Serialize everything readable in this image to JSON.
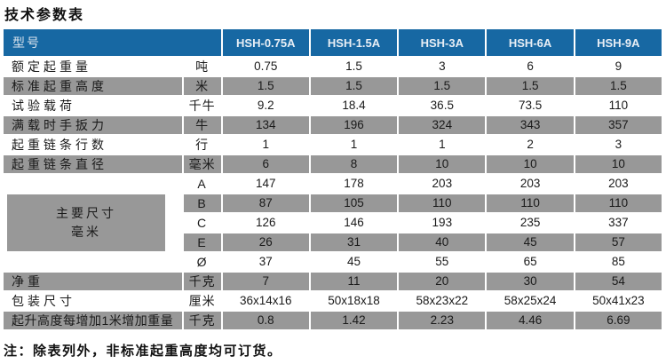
{
  "page": {
    "title": "技术参数表",
    "note": "注：除表列外，非标准起重高度均可订货。"
  },
  "colors": {
    "header_bg": "#1768a3",
    "header_text": "#e8eef5",
    "row_alt_bg": "#989898",
    "body_text": "#1a1a1a",
    "page_bg": "#ffffff"
  },
  "table": {
    "header": {
      "model_label": "型号",
      "models": [
        "HSH-0.75A",
        "HSH-1.5A",
        "HSH-3A",
        "HSH-6A",
        "HSH-9A"
      ]
    },
    "spec_rows": [
      {
        "label": "额定起重量",
        "unit": "吨",
        "values": [
          "0.75",
          "1.5",
          "3",
          "6",
          "9"
        ]
      },
      {
        "label": "标准起重高度",
        "unit": "米",
        "values": [
          "1.5",
          "1.5",
          "1.5",
          "1.5",
          "1.5"
        ]
      },
      {
        "label": "试验载荷",
        "unit": "千牛",
        "values": [
          "9.2",
          "18.4",
          "36.5",
          "73.5",
          "110"
        ]
      },
      {
        "label": "满载时手扳力",
        "unit": "牛",
        "values": [
          "134",
          "196",
          "324",
          "343",
          "357"
        ]
      },
      {
        "label": "起重链条行数",
        "unit": "行",
        "values": [
          "1",
          "1",
          "1",
          "2",
          "3"
        ]
      },
      {
        "label": "起重链条直径",
        "unit": "毫米",
        "values": [
          "6",
          "8",
          "10",
          "10",
          "10"
        ]
      }
    ],
    "dimension_group": {
      "label_line1": "主要尺寸",
      "label_line2": "毫米",
      "rows": [
        {
          "unit": "A",
          "values": [
            "147",
            "178",
            "203",
            "203",
            "203"
          ]
        },
        {
          "unit": "B",
          "values": [
            "87",
            "105",
            "110",
            "110",
            "110"
          ]
        },
        {
          "unit": "C",
          "values": [
            "126",
            "146",
            "193",
            "235",
            "337"
          ]
        },
        {
          "unit": "E",
          "values": [
            "26",
            "31",
            "40",
            "45",
            "57"
          ]
        },
        {
          "unit": "Ø",
          "values": [
            "37",
            "45",
            "55",
            "65",
            "85"
          ]
        }
      ]
    },
    "bottom_rows": [
      {
        "label": "净重",
        "unit": "千克",
        "values": [
          "7",
          "11",
          "20",
          "30",
          "54"
        ]
      },
      {
        "label": "包装尺寸",
        "unit": "厘米",
        "values": [
          "36x14x16",
          "50x18x18",
          "58x23x22",
          "58x25x24",
          "50x41x23"
        ]
      },
      {
        "label": "起升高度每增加1米增加重量",
        "unit": "千克",
        "values": [
          "0.8",
          "1.42",
          "2.23",
          "4.46",
          "6.69"
        ]
      }
    ]
  }
}
